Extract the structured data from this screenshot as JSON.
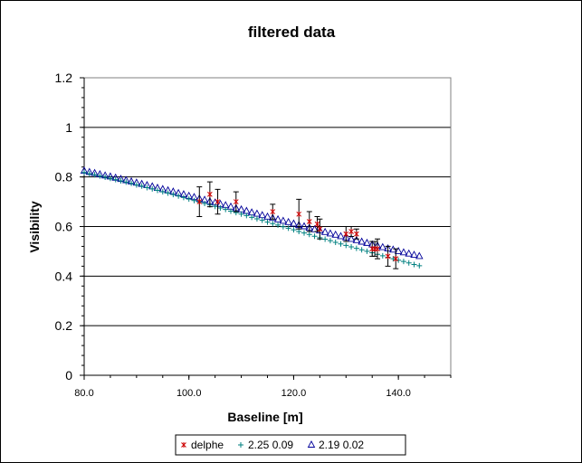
{
  "chart_data": {
    "type": "scatter",
    "title": "filtered data",
    "xlabel": "Baseline [m]",
    "ylabel": "Visibility",
    "xlim": [
      80,
      150
    ],
    "ylim": [
      0,
      1.2
    ],
    "x_ticks": [
      80,
      100,
      120,
      140
    ],
    "x_tick_labels": [
      "80.0",
      "100.0",
      "120.0",
      "140.0"
    ],
    "y_ticks": [
      0,
      0.2,
      0.4,
      0.6,
      0.8,
      1,
      1.2
    ],
    "y_tick_labels": [
      "0",
      "0.2",
      "0.4",
      "0.6",
      "0.8",
      "1",
      "1.2"
    ],
    "grid": "horizontal",
    "legend_position": "bottom",
    "colors": {
      "delphe": "#cc0000",
      "fit1": "#008080",
      "fit2": "#000099",
      "errorbar": "#000000"
    },
    "series": [
      {
        "name": "delphe",
        "marker": "x",
        "x": [
          102,
          104,
          105.5,
          109,
          116,
          121,
          123,
          124.5,
          125,
          130,
          131,
          132,
          135,
          135.5,
          136,
          138,
          139.5
        ],
        "y": [
          0.7,
          0.73,
          0.7,
          0.7,
          0.66,
          0.65,
          0.62,
          0.61,
          0.59,
          0.57,
          0.58,
          0.57,
          0.51,
          0.51,
          0.51,
          0.48,
          0.47
        ],
        "yerr": [
          0.06,
          0.05,
          0.05,
          0.04,
          0.03,
          0.06,
          0.04,
          0.03,
          0.04,
          0.03,
          0.02,
          0.02,
          0.03,
          0.03,
          0.04,
          0.04,
          0.04
        ]
      },
      {
        "name": "2.25 0.09",
        "marker": "+",
        "x": [
          80,
          81,
          82,
          83,
          84,
          85,
          86,
          87,
          88,
          89,
          90,
          91,
          92,
          93,
          94,
          95,
          96,
          97,
          98,
          99,
          100,
          101,
          102,
          103,
          104,
          105,
          106,
          107,
          108,
          109,
          110,
          111,
          112,
          113,
          114,
          115,
          116,
          117,
          118,
          119,
          120,
          121,
          122,
          123,
          124,
          125,
          126,
          127,
          128,
          129,
          130,
          131,
          132,
          133,
          134,
          135,
          136,
          137,
          138,
          139,
          140,
          141,
          142,
          143,
          144
        ],
        "y": [
          0.818,
          0.813,
          0.809,
          0.804,
          0.799,
          0.794,
          0.789,
          0.784,
          0.779,
          0.774,
          0.768,
          0.763,
          0.757,
          0.752,
          0.746,
          0.74,
          0.735,
          0.729,
          0.723,
          0.717,
          0.711,
          0.705,
          0.699,
          0.693,
          0.687,
          0.681,
          0.675,
          0.669,
          0.662,
          0.656,
          0.65,
          0.644,
          0.637,
          0.631,
          0.625,
          0.618,
          0.612,
          0.606,
          0.599,
          0.593,
          0.587,
          0.58,
          0.574,
          0.568,
          0.561,
          0.555,
          0.549,
          0.543,
          0.536,
          0.53,
          0.524,
          0.518,
          0.512,
          0.506,
          0.5,
          0.494,
          0.488,
          0.482,
          0.476,
          0.47,
          0.464,
          0.459,
          0.453,
          0.447,
          0.442
        ]
      },
      {
        "name": "2.19 0.02",
        "marker": "triangle",
        "x": [
          80,
          81,
          82,
          83,
          84,
          85,
          86,
          87,
          88,
          89,
          90,
          91,
          92,
          93,
          94,
          95,
          96,
          97,
          98,
          99,
          100,
          101,
          102,
          103,
          104,
          105,
          106,
          107,
          108,
          109,
          110,
          111,
          112,
          113,
          114,
          115,
          116,
          117,
          118,
          119,
          120,
          121,
          122,
          123,
          124,
          125,
          126,
          127,
          128,
          129,
          130,
          131,
          132,
          133,
          134,
          135,
          136,
          137,
          138,
          139,
          140,
          141,
          142,
          143,
          144
        ],
        "y": [
          0.824,
          0.819,
          0.815,
          0.81,
          0.805,
          0.801,
          0.796,
          0.791,
          0.786,
          0.781,
          0.776,
          0.771,
          0.766,
          0.761,
          0.755,
          0.75,
          0.745,
          0.74,
          0.734,
          0.729,
          0.723,
          0.718,
          0.712,
          0.707,
          0.701,
          0.696,
          0.69,
          0.685,
          0.679,
          0.673,
          0.668,
          0.662,
          0.656,
          0.651,
          0.645,
          0.639,
          0.634,
          0.628,
          0.622,
          0.617,
          0.611,
          0.605,
          0.6,
          0.594,
          0.588,
          0.583,
          0.577,
          0.571,
          0.566,
          0.56,
          0.555,
          0.549,
          0.544,
          0.538,
          0.533,
          0.527,
          0.522,
          0.516,
          0.511,
          0.506,
          0.5,
          0.495,
          0.49,
          0.485,
          0.48
        ]
      }
    ]
  }
}
